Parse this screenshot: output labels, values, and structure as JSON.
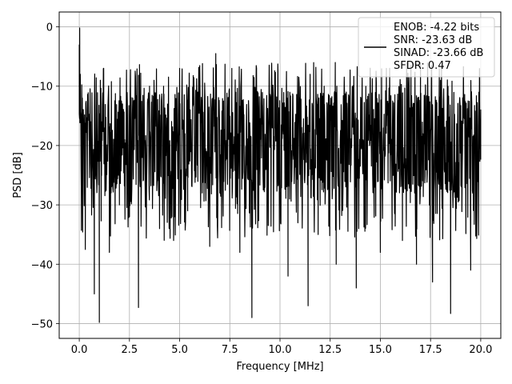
{
  "chart_data": {
    "type": "line",
    "xlabel": "Frequency [MHz]",
    "ylabel": "PSD [dB]",
    "xlim": [
      -1.0,
      21.0
    ],
    "ylim": [
      -52.5,
      2.5
    ],
    "xticks": [
      0.0,
      2.5,
      5.0,
      7.5,
      10.0,
      12.5,
      15.0,
      17.5,
      20.0
    ],
    "xtick_labels": [
      "0.0",
      "2.5",
      "5.0",
      "7.5",
      "10.0",
      "12.5",
      "15.0",
      "17.5",
      "20.0"
    ],
    "yticks": [
      0,
      -10,
      -20,
      -30,
      -40,
      -50
    ],
    "ytick_labels": [
      "0",
      "−10",
      "−20",
      "−30",
      "−40",
      "−50"
    ],
    "grid": true,
    "legend_position": "top-right",
    "legend_lines": [
      "ENOB: -4.22 bits",
      "SNR: -23.63 dB",
      "SINAD: -23.66 dB",
      "SFDR: 0.47"
    ],
    "line_color": "#000000",
    "series": [
      {
        "x": [
          0.0,
          0.02,
          0.05,
          0.1,
          0.15,
          0.2,
          0.3,
          0.35,
          0.5,
          0.75,
          0.85,
          1.0,
          1.05,
          1.1,
          1.5,
          2.0,
          2.1,
          2.5,
          2.95,
          3.0,
          3.5,
          4.0,
          4.2,
          4.7,
          5.0,
          5.4,
          5.9,
          6.5,
          6.8,
          7.0,
          7.6,
          8.0,
          8.6,
          8.8,
          9.0,
          9.9,
          10.4,
          11.0,
          11.4,
          11.5,
          11.9,
          12.2,
          12.8,
          13.3,
          13.8,
          14.5,
          15.0,
          15.3,
          16.1,
          16.8,
          17.0,
          17.6,
          18.0,
          18.5,
          19.1,
          19.5,
          20.0
        ],
        "y": [
          -3.0,
          -0.2,
          -8.0,
          -27.0,
          -12.0,
          -16.0,
          -37.5,
          -14.0,
          -18.0,
          -45.0,
          -17.0,
          -49.8,
          -9.0,
          -16.0,
          -38.0,
          -30.0,
          -12.5,
          -32.0,
          -47.3,
          -16.0,
          -10.0,
          -34.0,
          -10.0,
          -36.0,
          -7.0,
          -31.0,
          -11.0,
          -37.0,
          -4.5,
          -28.0,
          -7.0,
          -38.0,
          -49.0,
          -10.5,
          -25.0,
          -7.5,
          -42.0,
          -12.0,
          -47.0,
          -8.0,
          -35.0,
          -10.0,
          -40.0,
          -11.0,
          -44.0,
          -9.5,
          -38.0,
          -7.0,
          -36.0,
          -40.0,
          -6.0,
          -43.0,
          -9.0,
          -48.3,
          -12.0,
          -41.0,
          -14.0
        ]
      }
    ]
  }
}
